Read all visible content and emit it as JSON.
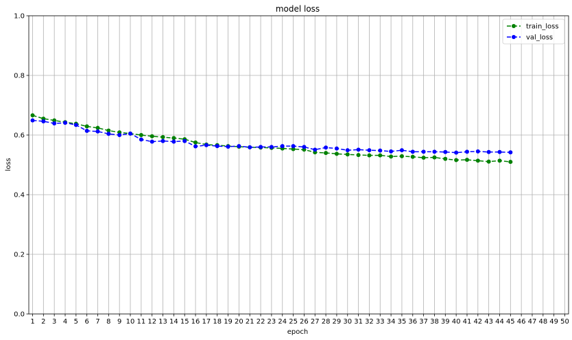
{
  "chart_data": {
    "type": "line",
    "title": "model loss",
    "xlabel": "epoch",
    "ylabel": "loss",
    "xlim": [
      1,
      50
    ],
    "ylim": [
      0.0,
      1.0
    ],
    "x_ticks": [
      1,
      2,
      3,
      4,
      5,
      6,
      7,
      8,
      9,
      10,
      11,
      12,
      13,
      14,
      15,
      16,
      17,
      18,
      19,
      20,
      21,
      22,
      23,
      24,
      25,
      26,
      27,
      28,
      29,
      30,
      31,
      32,
      33,
      34,
      35,
      36,
      37,
      38,
      39,
      40,
      41,
      42,
      43,
      44,
      45,
      46,
      47,
      48,
      49,
      50
    ],
    "y_ticks": [
      0.0,
      0.2,
      0.4,
      0.6,
      0.8,
      1.0
    ],
    "y_tick_labels": [
      "0.0",
      "0.2",
      "0.4",
      "0.6",
      "0.8",
      "1.0"
    ],
    "grid": true,
    "legend_position": "top-right",
    "series": [
      {
        "name": "train_loss",
        "color": "#008000",
        "marker": "circle",
        "line_style": "dashed",
        "x": [
          1,
          2,
          3,
          4,
          5,
          6,
          7,
          8,
          9,
          10,
          11,
          12,
          13,
          14,
          15,
          16,
          17,
          18,
          19,
          20,
          21,
          22,
          23,
          24,
          25,
          26,
          27,
          28,
          29,
          30,
          31,
          32,
          33,
          34,
          35,
          36,
          37,
          38,
          39,
          40,
          41,
          42,
          43,
          44,
          45
        ],
        "values": [
          0.666,
          0.655,
          0.649,
          0.643,
          0.638,
          0.629,
          0.624,
          0.615,
          0.609,
          0.605,
          0.6,
          0.596,
          0.593,
          0.59,
          0.586,
          0.575,
          0.568,
          0.566,
          0.563,
          0.561,
          0.559,
          0.558,
          0.557,
          0.555,
          0.553,
          0.551,
          0.542,
          0.54,
          0.537,
          0.535,
          0.533,
          0.532,
          0.532,
          0.528,
          0.529,
          0.527,
          0.524,
          0.525,
          0.52,
          0.516,
          0.517,
          0.514,
          0.511,
          0.514,
          0.51
        ]
      },
      {
        "name": "val_loss",
        "color": "#0000ff",
        "marker": "circle",
        "line_style": "dashed",
        "x": [
          1,
          2,
          3,
          4,
          5,
          6,
          7,
          8,
          9,
          10,
          11,
          12,
          13,
          14,
          15,
          16,
          17,
          18,
          19,
          20,
          21,
          22,
          23,
          24,
          25,
          26,
          27,
          28,
          29,
          30,
          31,
          32,
          33,
          34,
          35,
          36,
          37,
          38,
          39,
          40,
          41,
          42,
          43,
          44,
          45
        ],
        "values": [
          0.649,
          0.646,
          0.639,
          0.641,
          0.634,
          0.614,
          0.612,
          0.604,
          0.6,
          0.605,
          0.585,
          0.578,
          0.58,
          0.578,
          0.58,
          0.562,
          0.566,
          0.563,
          0.561,
          0.563,
          0.559,
          0.56,
          0.56,
          0.563,
          0.563,
          0.56,
          0.551,
          0.558,
          0.555,
          0.549,
          0.551,
          0.549,
          0.548,
          0.545,
          0.549,
          0.544,
          0.544,
          0.544,
          0.543,
          0.541,
          0.544,
          0.545,
          0.543,
          0.543,
          0.542
        ]
      }
    ]
  }
}
